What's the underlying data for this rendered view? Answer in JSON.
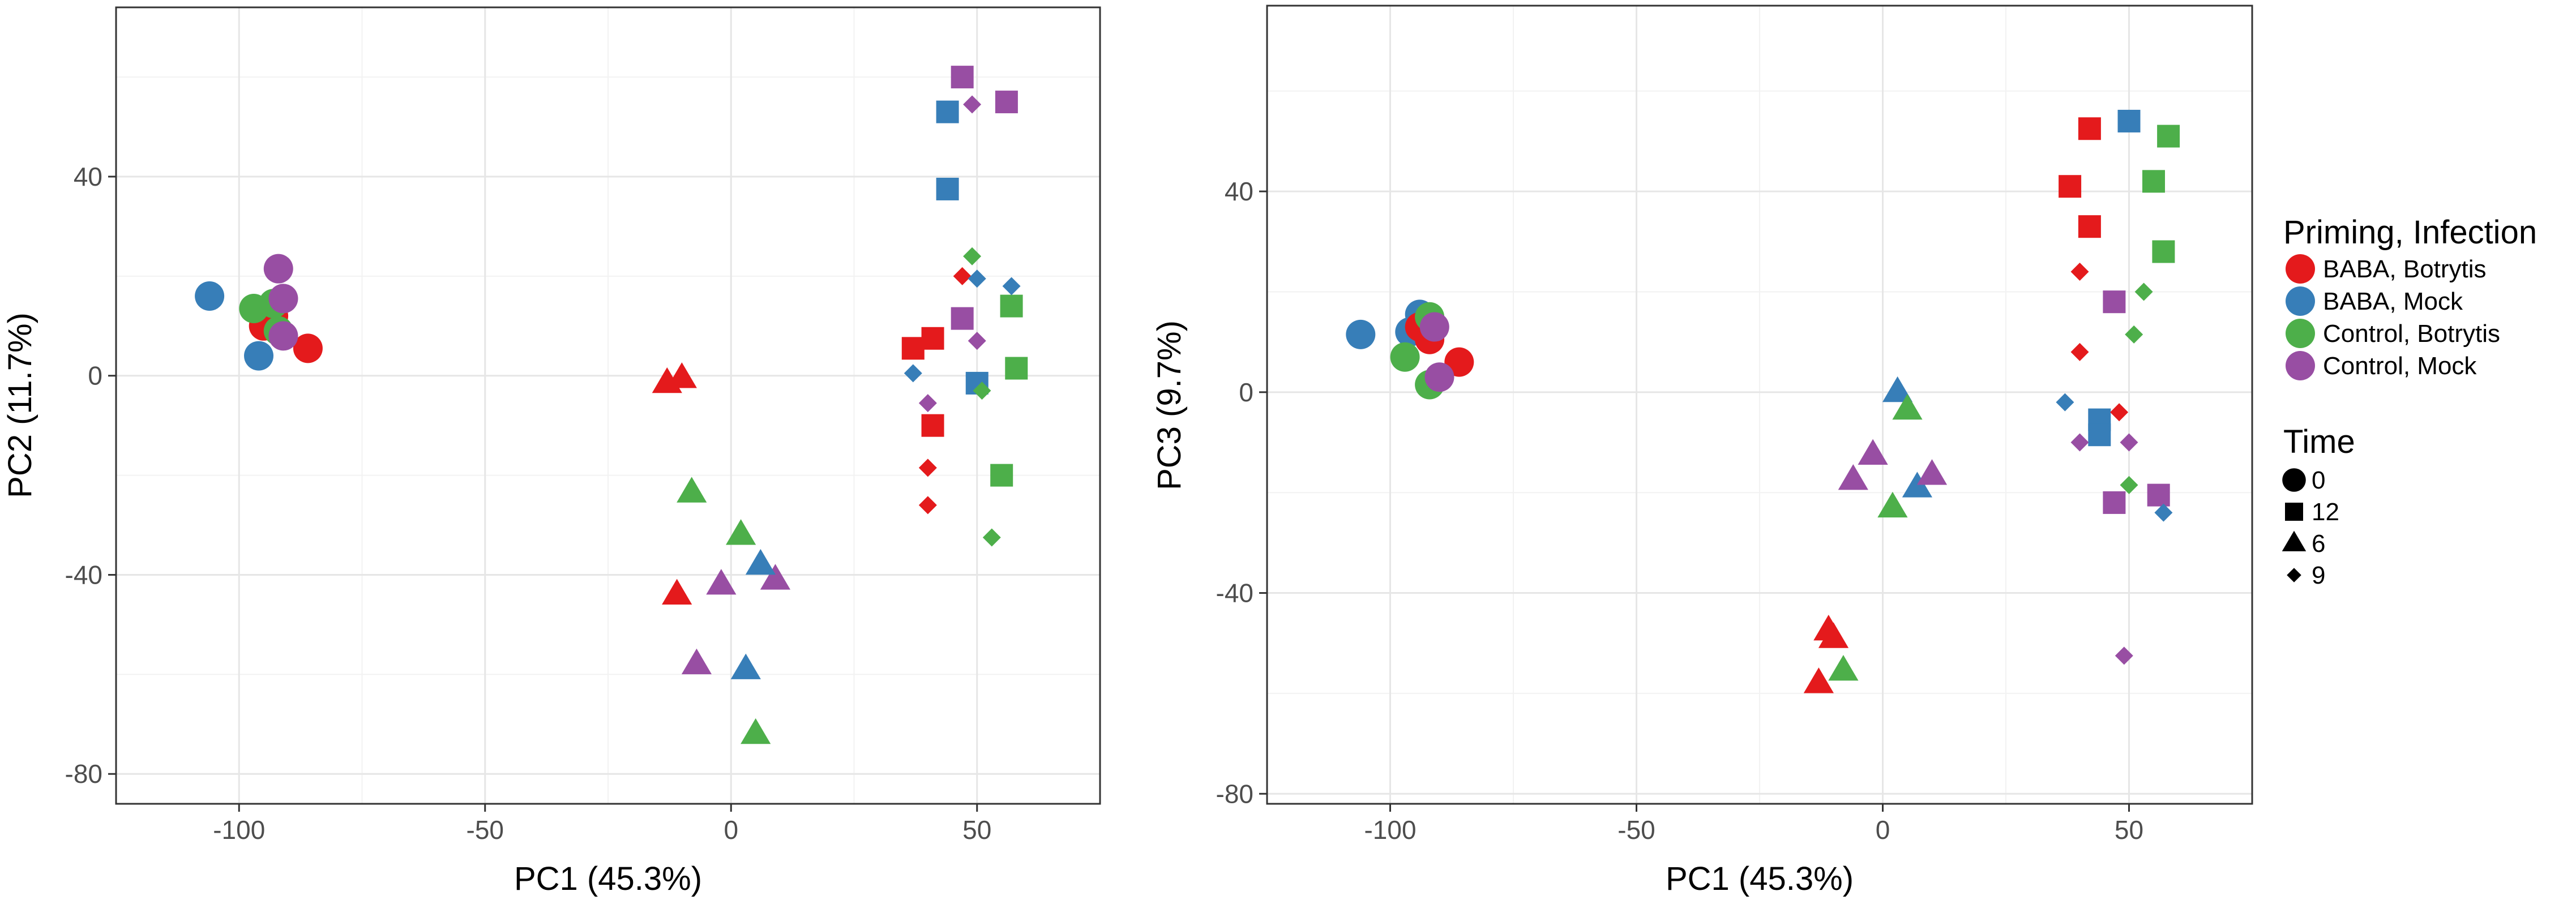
{
  "colors": {
    "BABA, Botrytis": "#e41a1c",
    "BABA, Mock": "#377eb8",
    "Control, Botrytis": "#4daf4a",
    "Control, Mock": "#984ea3",
    "legend_black": "#000000"
  },
  "legend": {
    "color_title": "Priming, Infection",
    "color_entries": [
      "BABA, Botrytis",
      "BABA, Mock",
      "Control, Botrytis",
      "Control, Mock"
    ],
    "shape_title": "Time",
    "shape_entries": [
      {
        "label": "0",
        "shape": "circle"
      },
      {
        "label": "12",
        "shape": "square"
      },
      {
        "label": "6",
        "shape": "triangle"
      },
      {
        "label": "9",
        "shape": "diamond"
      }
    ]
  },
  "chart_data": [
    {
      "type": "scatter",
      "xlabel": "PC1 (45.3%)",
      "ylabel": "PC2 (11.7%)",
      "xlim": [
        -125,
        75
      ],
      "ylim": [
        -86,
        74
      ],
      "xticks": [
        -100,
        -50,
        0,
        50
      ],
      "xtick_labels": [
        "-100",
        "-50",
        "0",
        "50"
      ],
      "yticks": [
        -80,
        -40,
        0,
        40
      ],
      "ytick_labels": [
        "-80",
        "-40",
        "0",
        "40"
      ],
      "grid": true,
      "points": [
        {
          "x": -106,
          "y": 16,
          "group": "BABA, Mock",
          "time": "0"
        },
        {
          "x": -96,
          "y": 4,
          "group": "BABA, Mock",
          "time": "0"
        },
        {
          "x": -95,
          "y": 10,
          "group": "BABA, Botrytis",
          "time": "0"
        },
        {
          "x": -93,
          "y": 12,
          "group": "BABA, Botrytis",
          "time": "0"
        },
        {
          "x": -86,
          "y": 5.5,
          "group": "BABA, Botrytis",
          "time": "0"
        },
        {
          "x": -97,
          "y": 13.5,
          "group": "Control, Botrytis",
          "time": "0"
        },
        {
          "x": -93,
          "y": 14.5,
          "group": "Control, Botrytis",
          "time": "0"
        },
        {
          "x": -92,
          "y": 9,
          "group": "Control, Botrytis",
          "time": "0"
        },
        {
          "x": -92,
          "y": 21.5,
          "group": "Control, Mock",
          "time": "0"
        },
        {
          "x": -91,
          "y": 15.5,
          "group": "Control, Mock",
          "time": "0"
        },
        {
          "x": -91,
          "y": 8,
          "group": "Control, Mock",
          "time": "0"
        },
        {
          "x": -13,
          "y": -1.5,
          "group": "BABA, Botrytis",
          "time": "6"
        },
        {
          "x": -10,
          "y": -0.5,
          "group": "BABA, Botrytis",
          "time": "6"
        },
        {
          "x": -11,
          "y": -44,
          "group": "BABA, Botrytis",
          "time": "6"
        },
        {
          "x": -8,
          "y": -23.5,
          "group": "Control, Botrytis",
          "time": "6"
        },
        {
          "x": 2,
          "y": -32,
          "group": "Control, Botrytis",
          "time": "6"
        },
        {
          "x": 5,
          "y": -72,
          "group": "Control, Botrytis",
          "time": "6"
        },
        {
          "x": -2,
          "y": -42,
          "group": "Control, Mock",
          "time": "6"
        },
        {
          "x": -7,
          "y": -58,
          "group": "Control, Mock",
          "time": "6"
        },
        {
          "x": 9,
          "y": -41,
          "group": "Control, Mock",
          "time": "6"
        },
        {
          "x": 6,
          "y": -38,
          "group": "BABA, Mock",
          "time": "6"
        },
        {
          "x": 3,
          "y": -59,
          "group": "BABA, Mock",
          "time": "6"
        },
        {
          "x": 47,
          "y": 60,
          "group": "Control, Mock",
          "time": "12"
        },
        {
          "x": 56,
          "y": 55,
          "group": "Control, Mock",
          "time": "12"
        },
        {
          "x": 47,
          "y": 11.5,
          "group": "Control, Mock",
          "time": "12"
        },
        {
          "x": 44,
          "y": 53,
          "group": "BABA, Mock",
          "time": "12"
        },
        {
          "x": 44,
          "y": 37.5,
          "group": "BABA, Mock",
          "time": "12"
        },
        {
          "x": 50,
          "y": -1.5,
          "group": "BABA, Mock",
          "time": "12"
        },
        {
          "x": 37,
          "y": 5.5,
          "group": "BABA, Botrytis",
          "time": "12"
        },
        {
          "x": 41,
          "y": 7.5,
          "group": "BABA, Botrytis",
          "time": "12"
        },
        {
          "x": 41,
          "y": -10,
          "group": "BABA, Botrytis",
          "time": "12"
        },
        {
          "x": 57,
          "y": 14,
          "group": "Control, Botrytis",
          "time": "12"
        },
        {
          "x": 58,
          "y": 1.5,
          "group": "Control, Botrytis",
          "time": "12"
        },
        {
          "x": 55,
          "y": -20,
          "group": "Control, Botrytis",
          "time": "12"
        },
        {
          "x": 49,
          "y": 54.5,
          "group": "Control, Mock",
          "time": "9"
        },
        {
          "x": 50,
          "y": 7,
          "group": "Control, Mock",
          "time": "9"
        },
        {
          "x": 40,
          "y": -5.5,
          "group": "Control, Mock",
          "time": "9"
        },
        {
          "x": 49,
          "y": 24,
          "group": "Control, Botrytis",
          "time": "9"
        },
        {
          "x": 51,
          "y": -3,
          "group": "Control, Botrytis",
          "time": "9"
        },
        {
          "x": 53,
          "y": -32.5,
          "group": "Control, Botrytis",
          "time": "9"
        },
        {
          "x": 47,
          "y": 20,
          "group": "BABA, Botrytis",
          "time": "9"
        },
        {
          "x": 40,
          "y": -18.5,
          "group": "BABA, Botrytis",
          "time": "9"
        },
        {
          "x": 40,
          "y": -26,
          "group": "BABA, Botrytis",
          "time": "9"
        },
        {
          "x": 50,
          "y": 19.5,
          "group": "BABA, Mock",
          "time": "9"
        },
        {
          "x": 57,
          "y": 18,
          "group": "BABA, Mock",
          "time": "9"
        },
        {
          "x": 37,
          "y": 0.5,
          "group": "BABA, Mock",
          "time": "9"
        }
      ]
    },
    {
      "type": "scatter",
      "xlabel": "PC1 (45.3%)",
      "ylabel": "PC3 (9.7%)",
      "xlim": [
        -125,
        75
      ],
      "ylim": [
        -82,
        77
      ],
      "xticks": [
        -100,
        -50,
        0,
        50
      ],
      "xtick_labels": [
        "-100",
        "-50",
        "0",
        "50"
      ],
      "yticks": [
        -80,
        -40,
        0,
        40
      ],
      "ytick_labels": [
        "-80",
        "-40",
        "0",
        "40"
      ],
      "grid": true,
      "points": [
        {
          "x": -106,
          "y": 11.5,
          "group": "BABA, Mock",
          "time": "0"
        },
        {
          "x": -96,
          "y": 12,
          "group": "BABA, Mock",
          "time": "0"
        },
        {
          "x": -94,
          "y": 15.5,
          "group": "BABA, Mock",
          "time": "0"
        },
        {
          "x": -94,
          "y": 13,
          "group": "BABA, Botrytis",
          "time": "0"
        },
        {
          "x": -92,
          "y": 10.5,
          "group": "BABA, Botrytis",
          "time": "0"
        },
        {
          "x": -86,
          "y": 6,
          "group": "BABA, Botrytis",
          "time": "0"
        },
        {
          "x": -97,
          "y": 7,
          "group": "Control, Botrytis",
          "time": "0"
        },
        {
          "x": -92,
          "y": 1.5,
          "group": "Control, Botrytis",
          "time": "0"
        },
        {
          "x": -92,
          "y": 15,
          "group": "Control, Botrytis",
          "time": "0"
        },
        {
          "x": -91,
          "y": 13,
          "group": "Control, Mock",
          "time": "0"
        },
        {
          "x": -90,
          "y": 3,
          "group": "Control, Mock",
          "time": "0"
        },
        {
          "x": 3,
          "y": 0,
          "group": "BABA, Mock",
          "time": "6"
        },
        {
          "x": 7,
          "y": -19,
          "group": "BABA, Mock",
          "time": "6"
        },
        {
          "x": 5,
          "y": -3.5,
          "group": "Control, Botrytis",
          "time": "6"
        },
        {
          "x": 2,
          "y": -23,
          "group": "Control, Botrytis",
          "time": "6"
        },
        {
          "x": -8,
          "y": -55.5,
          "group": "Control, Botrytis",
          "time": "6"
        },
        {
          "x": -2,
          "y": -12.5,
          "group": "Control, Mock",
          "time": "6"
        },
        {
          "x": -6,
          "y": -17.5,
          "group": "Control, Mock",
          "time": "6"
        },
        {
          "x": 10,
          "y": -16.5,
          "group": "Control, Mock",
          "time": "6"
        },
        {
          "x": -11,
          "y": -47.5,
          "group": "BABA, Botrytis",
          "time": "6"
        },
        {
          "x": -10,
          "y": -49,
          "group": "BABA, Botrytis",
          "time": "6"
        },
        {
          "x": -13,
          "y": -58,
          "group": "BABA, Botrytis",
          "time": "6"
        },
        {
          "x": 42,
          "y": 52.5,
          "group": "BABA, Botrytis",
          "time": "12"
        },
        {
          "x": 38,
          "y": 41,
          "group": "BABA, Botrytis",
          "time": "12"
        },
        {
          "x": 42,
          "y": 33,
          "group": "BABA, Botrytis",
          "time": "12"
        },
        {
          "x": 50,
          "y": 54,
          "group": "BABA, Mock",
          "time": "12"
        },
        {
          "x": 44,
          "y": -5.5,
          "group": "BABA, Mock",
          "time": "12"
        },
        {
          "x": 44,
          "y": -8.5,
          "group": "BABA, Mock",
          "time": "12"
        },
        {
          "x": 58,
          "y": 51,
          "group": "Control, Botrytis",
          "time": "12"
        },
        {
          "x": 55,
          "y": 42,
          "group": "Control, Botrytis",
          "time": "12"
        },
        {
          "x": 57,
          "y": 28,
          "group": "Control, Botrytis",
          "time": "12"
        },
        {
          "x": 47,
          "y": 18,
          "group": "Control, Mock",
          "time": "12"
        },
        {
          "x": 47,
          "y": -22,
          "group": "Control, Mock",
          "time": "12"
        },
        {
          "x": 56,
          "y": -20.5,
          "group": "Control, Mock",
          "time": "12"
        },
        {
          "x": 40,
          "y": 24,
          "group": "BABA, Botrytis",
          "time": "9"
        },
        {
          "x": 40,
          "y": 8,
          "group": "BABA, Botrytis",
          "time": "9"
        },
        {
          "x": 48,
          "y": -4,
          "group": "BABA, Botrytis",
          "time": "9"
        },
        {
          "x": 53,
          "y": 20,
          "group": "Control, Botrytis",
          "time": "9"
        },
        {
          "x": 51,
          "y": 11.5,
          "group": "Control, Botrytis",
          "time": "9"
        },
        {
          "x": 50,
          "y": -18.5,
          "group": "Control, Botrytis",
          "time": "9"
        },
        {
          "x": 37,
          "y": -2,
          "group": "BABA, Mock",
          "time": "9"
        },
        {
          "x": 57,
          "y": -24,
          "group": "BABA, Mock",
          "time": "9"
        },
        {
          "x": 40,
          "y": -10,
          "group": "Control, Mock",
          "time": "9"
        },
        {
          "x": 50,
          "y": -10,
          "group": "Control, Mock",
          "time": "9"
        },
        {
          "x": 49,
          "y": -52.5,
          "group": "Control, Mock",
          "time": "9"
        }
      ]
    }
  ]
}
